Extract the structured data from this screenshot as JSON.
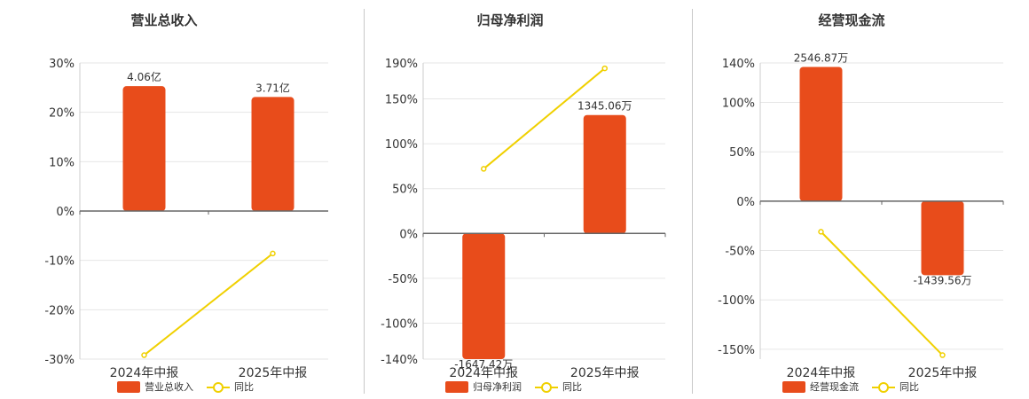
{
  "colors": {
    "bar": "#e84c1b",
    "line": "#f0d000",
    "grid": "#e6e6e6",
    "axis": "#666666",
    "text": "#333333"
  },
  "legend": {
    "yoy_label": "同比"
  },
  "chart_data": [
    {
      "type": "bar",
      "title": "营业总收入",
      "categories": [
        "2024年中报",
        "2025年中报"
      ],
      "series": [
        {
          "name": "营业总收入",
          "kind": "bar",
          "values": [
            25.3,
            23.1
          ],
          "labels": [
            "4.06亿",
            "3.71亿"
          ]
        },
        {
          "name": "同比",
          "kind": "line",
          "values": [
            -29.2,
            -8.6
          ]
        }
      ],
      "yticks": [
        30,
        20,
        10,
        0,
        -10,
        -20,
        -30
      ],
      "ytick_labels": [
        "30%",
        "20%",
        "10%",
        "0%",
        "-10%",
        "-20%",
        "-30%"
      ],
      "ylim": [
        -30,
        30
      ],
      "grid": true,
      "legend_position": "bottom"
    },
    {
      "type": "bar",
      "title": "归母净利润",
      "categories": [
        "2024年中报",
        "2025年中报"
      ],
      "series": [
        {
          "name": "归母净利润",
          "kind": "bar",
          "values": [
            -140,
            132
          ],
          "labels": [
            "-1647.42万",
            "1345.06万"
          ]
        },
        {
          "name": "同比",
          "kind": "line",
          "values": [
            72,
            184
          ]
        }
      ],
      "yticks": [
        190,
        150,
        100,
        50,
        0,
        -50,
        -100,
        -140
      ],
      "ytick_labels": [
        "190%",
        "150%",
        "100%",
        "50%",
        "0%",
        "-50%",
        "-100%",
        "-140%"
      ],
      "ylim": [
        -140,
        190
      ],
      "grid": true,
      "legend_position": "bottom"
    },
    {
      "type": "bar",
      "title": "经营现金流",
      "categories": [
        "2024年中报",
        "2025年中报"
      ],
      "series": [
        {
          "name": "经营现金流",
          "kind": "bar",
          "values": [
            136,
            -75
          ],
          "labels": [
            "2546.87万",
            "-1439.56万"
          ]
        },
        {
          "name": "同比",
          "kind": "line",
          "values": [
            -31,
            -156
          ]
        }
      ],
      "yticks": [
        140,
        100,
        50,
        0,
        -50,
        -100,
        -150
      ],
      "ytick_labels": [
        "140%",
        "100%",
        "50%",
        "0%",
        "-50%",
        "-100%",
        "-150%"
      ],
      "ylim": [
        -160,
        140
      ],
      "grid": true,
      "legend_position": "bottom"
    }
  ]
}
